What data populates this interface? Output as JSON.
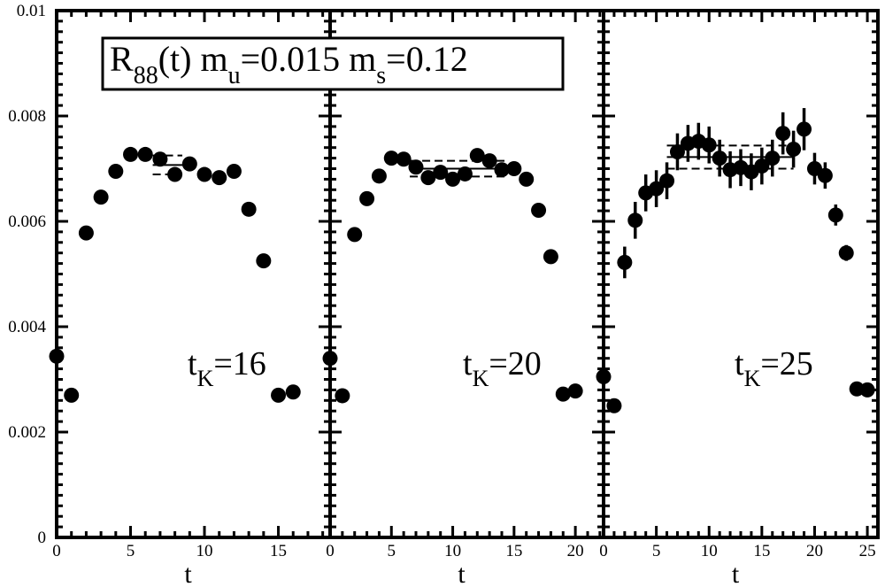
{
  "chart_data": {
    "type": "scatter",
    "title": {
      "r_main": "R",
      "r_sub": "88",
      "r_tail": "(t) m",
      "mu_sub": "u",
      "mu_value": "=0.015 m",
      "ms_sub": "s",
      "ms_value": "=0.12"
    },
    "ylim": [
      0,
      0.01
    ],
    "yticks": [
      "0",
      "0.002",
      "0.004",
      "0.006",
      "0.008",
      "0.01"
    ],
    "panels": [
      {
        "name": "tK16",
        "label_main": "t",
        "label_sub": "K",
        "label_value": "=16",
        "xlabel": "t",
        "xlim": [
          0,
          18.5
        ],
        "xticks": [
          "0",
          "5",
          "10",
          "15"
        ],
        "fit": {
          "t_start": 6.5,
          "t_end": 8.5,
          "value": 0.00707,
          "error": 0.00018
        },
        "points": [
          {
            "t": 0,
            "y": 0.00344,
            "err": 8e-05
          },
          {
            "t": 1,
            "y": 0.0027,
            "err": 8e-05
          },
          {
            "t": 2,
            "y": 0.00578,
            "err": 0.0001
          },
          {
            "t": 3,
            "y": 0.00646,
            "err": 0.0001
          },
          {
            "t": 4,
            "y": 0.00695,
            "err": 0.0001
          },
          {
            "t": 5,
            "y": 0.00727,
            "err": 0.0001
          },
          {
            "t": 6,
            "y": 0.00727,
            "err": 0.0001
          },
          {
            "t": 7,
            "y": 0.00718,
            "err": 0.00012
          },
          {
            "t": 8,
            "y": 0.00689,
            "err": 0.00012
          },
          {
            "t": 9,
            "y": 0.00709,
            "err": 0.00012
          },
          {
            "t": 10,
            "y": 0.00689,
            "err": 0.00012
          },
          {
            "t": 11,
            "y": 0.00683,
            "err": 0.00012
          },
          {
            "t": 12,
            "y": 0.00695,
            "err": 0.0001
          },
          {
            "t": 13,
            "y": 0.00623,
            "err": 0.0001
          },
          {
            "t": 14,
            "y": 0.00525,
            "err": 0.0001
          },
          {
            "t": 15,
            "y": 0.0027,
            "err": 8e-05
          },
          {
            "t": 16,
            "y": 0.00276,
            "err": 8e-05
          }
        ]
      },
      {
        "name": "tK20",
        "label_main": "t",
        "label_sub": "K",
        "label_value": "=20",
        "xlabel": "t",
        "xlim": [
          0,
          22.3
        ],
        "xticks": [
          "0",
          "5",
          "10",
          "15",
          "20"
        ],
        "fit": {
          "t_start": 6.5,
          "t_end": 14.5,
          "value": 0.007,
          "error": 0.00015
        },
        "points": [
          {
            "t": 0,
            "y": 0.0034,
            "err": 8e-05
          },
          {
            "t": 1,
            "y": 0.00269,
            "err": 8e-05
          },
          {
            "t": 2,
            "y": 0.00575,
            "err": 0.0001
          },
          {
            "t": 3,
            "y": 0.00643,
            "err": 0.00012
          },
          {
            "t": 4,
            "y": 0.00686,
            "err": 0.00012
          },
          {
            "t": 5,
            "y": 0.0072,
            "err": 0.00013
          },
          {
            "t": 6,
            "y": 0.00718,
            "err": 0.00013
          },
          {
            "t": 7,
            "y": 0.00703,
            "err": 0.00013
          },
          {
            "t": 8,
            "y": 0.00683,
            "err": 0.00013
          },
          {
            "t": 9,
            "y": 0.00693,
            "err": 0.00013
          },
          {
            "t": 10,
            "y": 0.0068,
            "err": 0.00013
          },
          {
            "t": 11,
            "y": 0.0069,
            "err": 0.00013
          },
          {
            "t": 12,
            "y": 0.00725,
            "err": 0.00013
          },
          {
            "t": 13,
            "y": 0.00715,
            "err": 0.00013
          },
          {
            "t": 14,
            "y": 0.00698,
            "err": 0.00013
          },
          {
            "t": 15,
            "y": 0.007,
            "err": 0.00013
          },
          {
            "t": 16,
            "y": 0.0068,
            "err": 0.00013
          },
          {
            "t": 17,
            "y": 0.00621,
            "err": 0.0001
          },
          {
            "t": 18,
            "y": 0.00533,
            "err": 0.0001
          },
          {
            "t": 19,
            "y": 0.00272,
            "err": 8e-05
          },
          {
            "t": 20,
            "y": 0.00278,
            "err": 8e-05
          }
        ]
      },
      {
        "name": "tK25",
        "label_main": "t",
        "label_sub": "K",
        "label_value": "=25",
        "xlabel": "t",
        "xlim": [
          0,
          26
        ],
        "xticks": [
          "0",
          "5",
          "10",
          "15",
          "20",
          "25"
        ],
        "fit": {
          "t_start": 6,
          "t_end": 18,
          "value": 0.00722,
          "error": 0.00022
        },
        "points": [
          {
            "t": 0,
            "y": 0.00305,
            "err": 0.00012
          },
          {
            "t": 1,
            "y": 0.0025,
            "err": 0.0001
          },
          {
            "t": 2,
            "y": 0.00522,
            "err": 0.0003
          },
          {
            "t": 3,
            "y": 0.00602,
            "err": 0.00035
          },
          {
            "t": 4,
            "y": 0.00654,
            "err": 0.00035
          },
          {
            "t": 5,
            "y": 0.00662,
            "err": 0.00035
          },
          {
            "t": 6,
            "y": 0.00677,
            "err": 0.00035
          },
          {
            "t": 7,
            "y": 0.00732,
            "err": 0.00035
          },
          {
            "t": 8,
            "y": 0.00748,
            "err": 0.00035
          },
          {
            "t": 9,
            "y": 0.00752,
            "err": 0.00035
          },
          {
            "t": 10,
            "y": 0.00745,
            "err": 0.00035
          },
          {
            "t": 11,
            "y": 0.0072,
            "err": 0.00035
          },
          {
            "t": 12,
            "y": 0.00698,
            "err": 0.00035
          },
          {
            "t": 13,
            "y": 0.00702,
            "err": 0.00035
          },
          {
            "t": 14,
            "y": 0.00694,
            "err": 0.00035
          },
          {
            "t": 15,
            "y": 0.00705,
            "err": 0.00035
          },
          {
            "t": 16,
            "y": 0.0072,
            "err": 0.00035
          },
          {
            "t": 17,
            "y": 0.00767,
            "err": 0.0004
          },
          {
            "t": 18,
            "y": 0.00737,
            "err": 0.00035
          },
          {
            "t": 19,
            "y": 0.00775,
            "err": 0.0004
          },
          {
            "t": 20,
            "y": 0.007,
            "err": 0.0003
          },
          {
            "t": 21,
            "y": 0.00687,
            "err": 0.00025
          },
          {
            "t": 22,
            "y": 0.00612,
            "err": 0.0002
          },
          {
            "t": 23,
            "y": 0.0054,
            "err": 0.00015
          },
          {
            "t": 24,
            "y": 0.00282,
            "err": 8e-05
          },
          {
            "t": 25,
            "y": 0.0028,
            "err": 8e-05
          }
        ]
      }
    ]
  }
}
